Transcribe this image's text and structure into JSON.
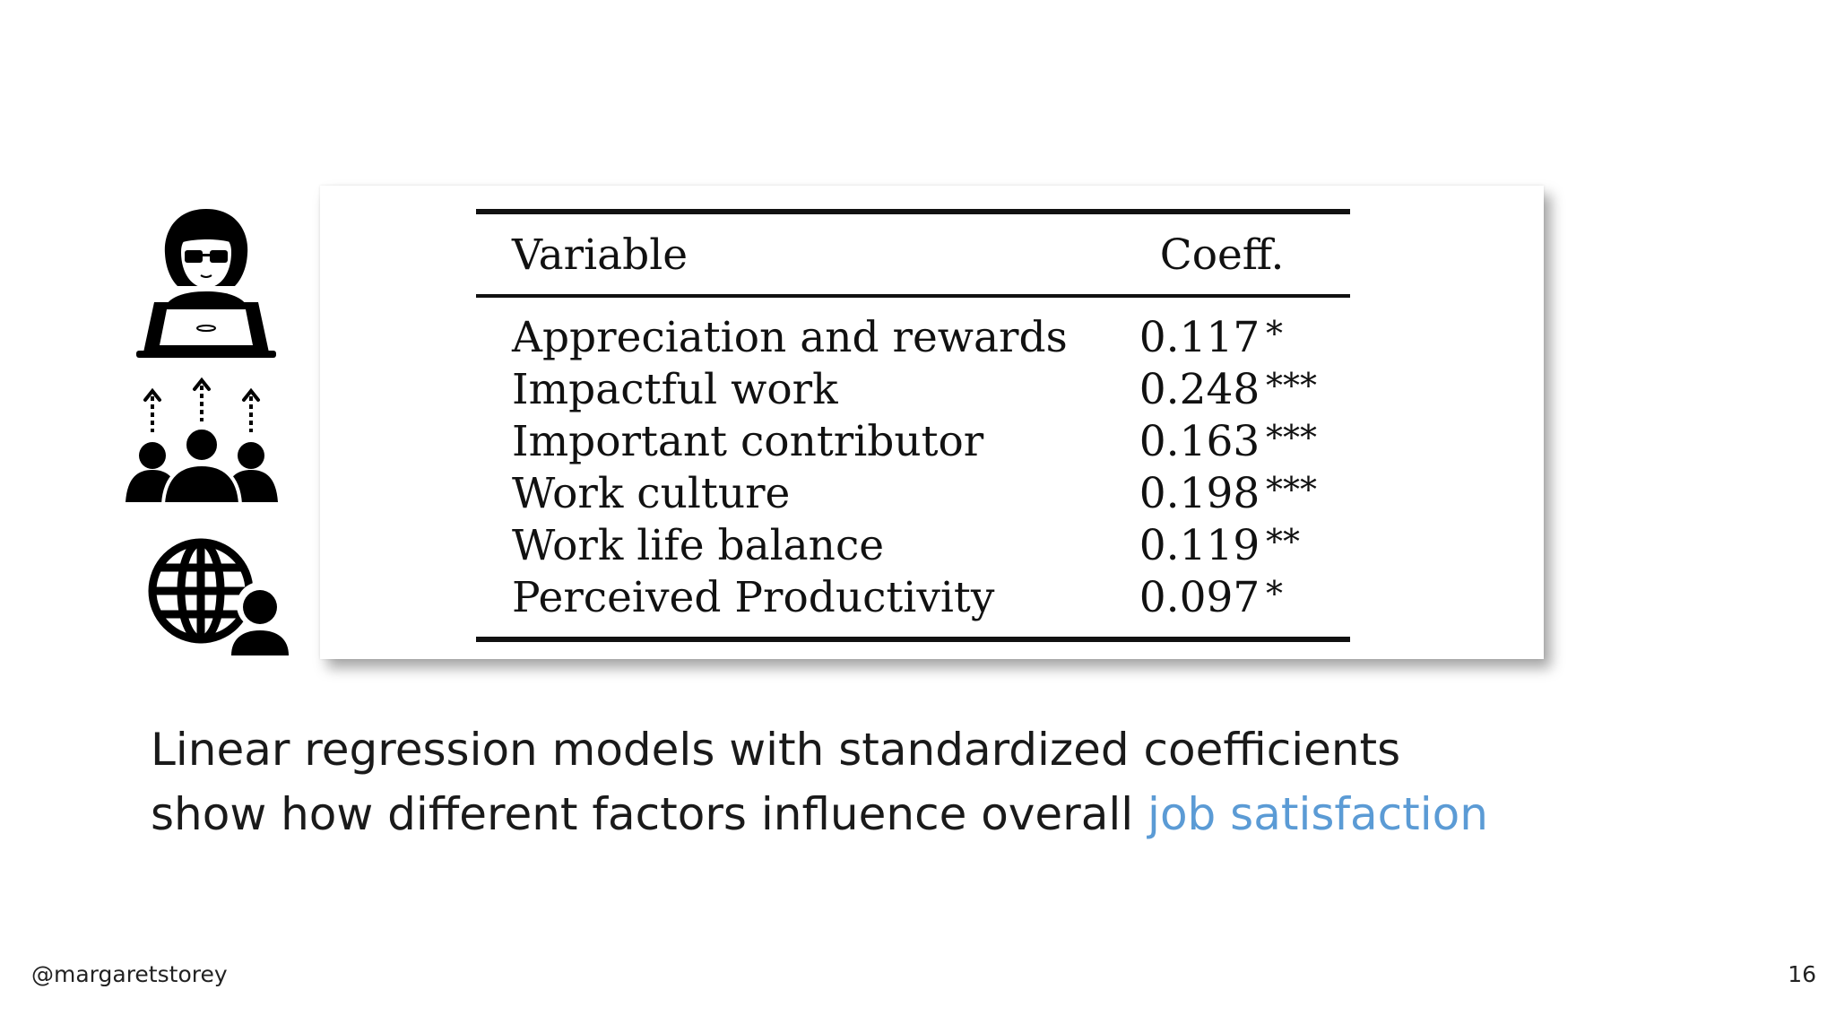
{
  "icons": {
    "developer": "developer-with-laptop-icon",
    "team": "team-growth-icon",
    "global": "globe-user-icon"
  },
  "table": {
    "headers": {
      "variable": "Variable",
      "coeff": "Coeff."
    },
    "rows": [
      {
        "variable": "Appreciation and rewards",
        "coeff": "0.117",
        "sig": "*"
      },
      {
        "variable": "Impactful work",
        "coeff": "0.248",
        "sig": "***"
      },
      {
        "variable": "Important contributor",
        "coeff": "0.163",
        "sig": "***"
      },
      {
        "variable": "Work culture",
        "coeff": "0.198",
        "sig": "***"
      },
      {
        "variable": "Work life balance",
        "coeff": "0.119",
        "sig": "**"
      },
      {
        "variable": "Perceived Productivity",
        "coeff": "0.097",
        "sig": "*"
      }
    ]
  },
  "caption": {
    "line1": "Linear regression models with standardized coefficients",
    "line2_prefix": "show how different factors influence overall ",
    "line2_highlight": "job satisfaction",
    "highlight_color": "#5b9bd5"
  },
  "footer": {
    "handle": "@margaretstorey",
    "page_number": "16"
  }
}
